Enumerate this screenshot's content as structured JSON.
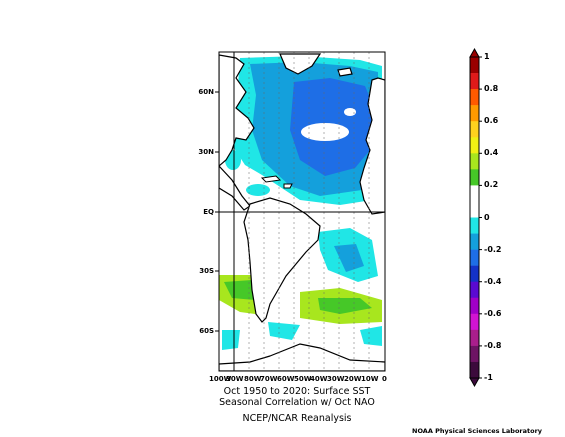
{
  "map": {
    "title_line1": "Oct 1950 to 2020: Surface SST",
    "title_line2": "Seasonal Correlation w/ Oct NAO",
    "subtitle": "NCEP/NCAR Reanalysis",
    "credit": "NOAA Physical Sciences Laboratory",
    "lat_labels": [
      "60N",
      "30N",
      "EQ",
      "30S",
      "60S"
    ],
    "lon_labels": [
      "100W",
      "90W",
      "80W",
      "70W",
      "60W",
      "50W",
      "40W",
      "30W",
      "20W",
      "10W",
      "0"
    ],
    "regions": [
      {
        "name": "North Atlantic subpolar",
        "correlation": -0.3
      },
      {
        "name": "Central North Atlantic",
        "correlation": -0.4
      },
      {
        "name": "Subtropical North Atlantic",
        "correlation": -0.2
      },
      {
        "name": "Caribbean",
        "correlation": -0.2
      },
      {
        "name": "South Atlantic mid-latitudes",
        "correlation": 0.2
      },
      {
        "name": "Southeast Pacific",
        "correlation": 0.2
      }
    ]
  },
  "colorbar": {
    "labels": [
      "1",
      "0.8",
      "0.6",
      "0.4",
      "0.2",
      "0",
      "-0.2",
      "-0.4",
      "-0.6",
      "-0.8",
      "-1"
    ],
    "colors": [
      "#9a0000",
      "#e01a1a",
      "#ff5a00",
      "#ff9a00",
      "#ffd21e",
      "#f0f014",
      "#a8e61e",
      "#46c828",
      "#ffffff",
      "#ffffff",
      "#20e6e6",
      "#14a0dc",
      "#1e6ee6",
      "#1432c8",
      "#5a0ad2",
      "#a000c8",
      "#d214d2",
      "#aa1e8c",
      "#6e1464",
      "#3c0a3c"
    ]
  }
}
